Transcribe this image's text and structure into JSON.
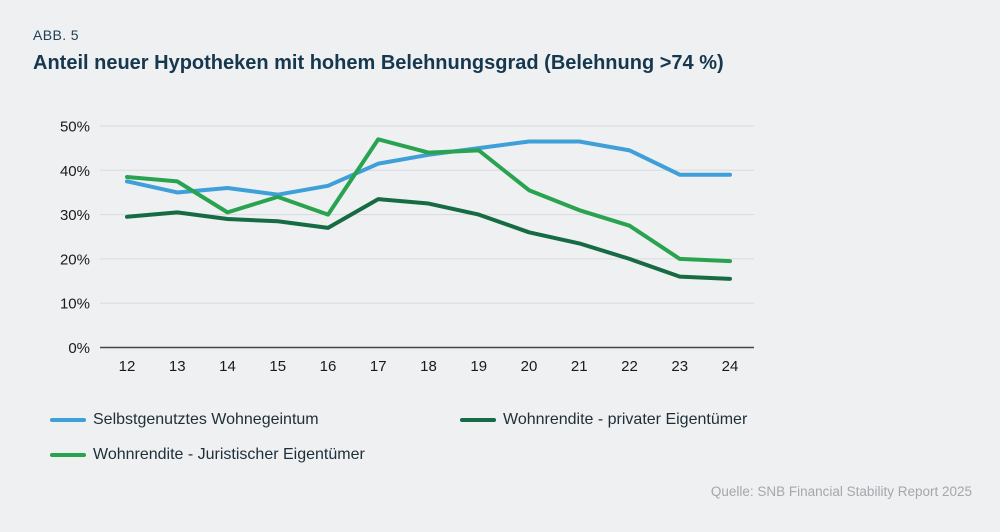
{
  "header": {
    "figure_label": "ABB. 5",
    "title": "Anteil neuer Hypotheken mit hohem Belehnungsgrad (Belehnung >74 %)"
  },
  "footer": {
    "source": "Quelle: SNB Financial Stability Report 2025"
  },
  "colors": {
    "background": "#eef0f1",
    "title": "#16384f",
    "gridline": "#d8dade",
    "axis_line": "#42474c",
    "tick_text": "#1a1a1a",
    "legend_text": "#1f2e38",
    "source_text": "#a3a8ac"
  },
  "chart_data": {
    "type": "line",
    "title": "Anteil neuer Hypotheken mit hohem Belehnungsgrad (Belehnung >74 %)",
    "x_tick_labels": [
      "12",
      "13",
      "14",
      "15",
      "16",
      "17",
      "18",
      "19",
      "20",
      "21",
      "22",
      "23",
      "24"
    ],
    "y_ticks": [
      0,
      10,
      20,
      30,
      40,
      50
    ],
    "y_tick_suffix": "%",
    "ylim": [
      0,
      50
    ],
    "grid": "horizontal",
    "legend_position": "bottom",
    "series": [
      {
        "name": "Selbstgenutztes Wohnegeintum",
        "color": "#3f9fd8",
        "values": [
          37.5,
          35,
          36,
          34.5,
          36.5,
          41.5,
          43.5,
          45,
          46.5,
          46.5,
          44.5,
          39,
          39
        ]
      },
      {
        "name": "Wohnrendite - privater Eigentümer",
        "color": "#176b44",
        "values": [
          29.5,
          30.5,
          29,
          28.5,
          27,
          33.5,
          32.5,
          30,
          26,
          23.5,
          20,
          16,
          15.5
        ]
      },
      {
        "name": "Wohnrendite - Juristischer Eigentümer",
        "color": "#2aa350",
        "values": [
          38.5,
          37.5,
          30.5,
          34,
          30,
          47,
          44,
          44.5,
          35.5,
          31,
          27.5,
          20,
          19.5
        ]
      }
    ]
  }
}
